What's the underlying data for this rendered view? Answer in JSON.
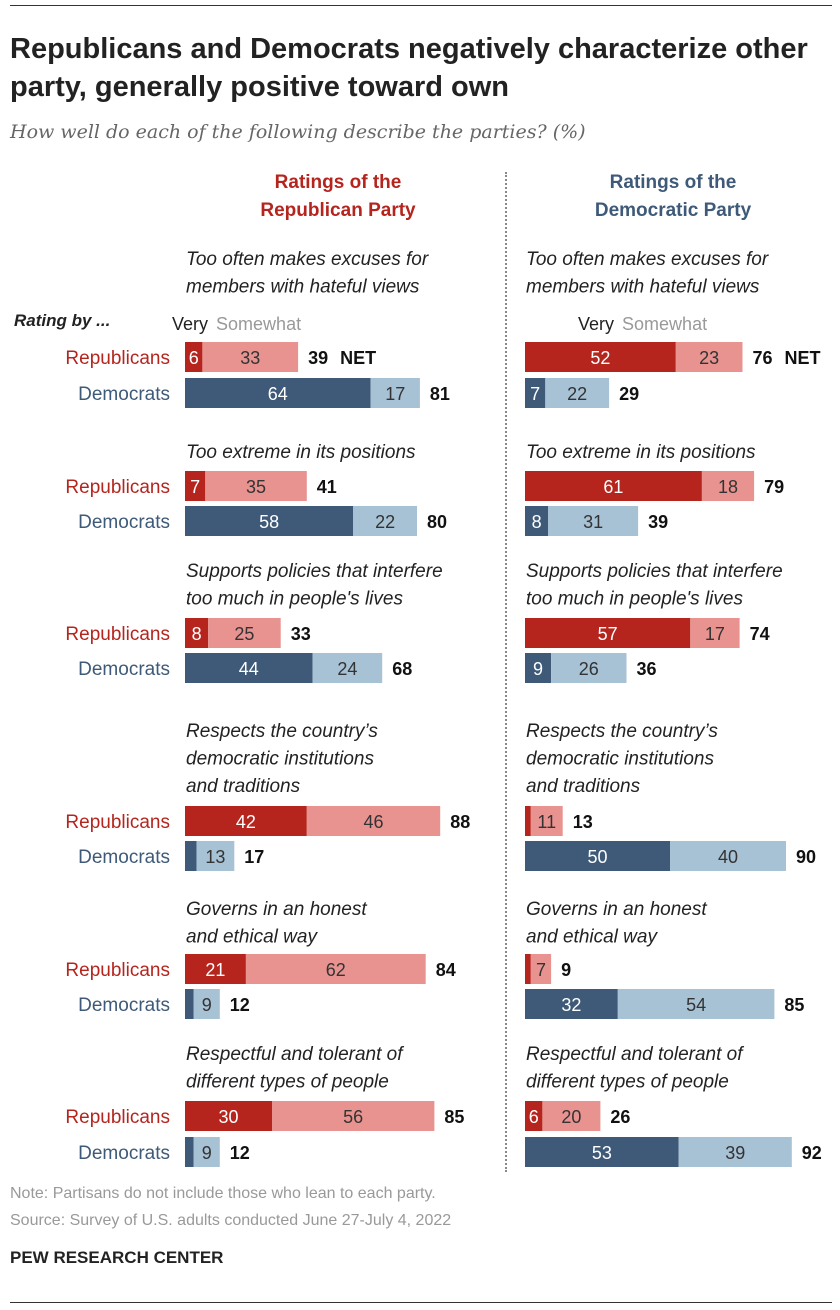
{
  "header": {
    "title": "Republicans and Democrats negatively characterize other party, generally positive toward own",
    "subtitle": "How well do each of the following describe the parties? (%)",
    "rating_by": "Rating by ..."
  },
  "legend": {
    "very": "Very",
    "somewhat": "Somewhat"
  },
  "footer": {
    "note": "Note: Partisans do not include those who lean to each party.",
    "source": "Source: Survey of U.S. adults conducted June 27-July 4, 2022",
    "brand": "PEW RESEARCH CENTER"
  },
  "colors": {
    "rep_very": "#b5251e",
    "rep_somewhat": "#e89390",
    "dem_very": "#3e5a78",
    "dem_somewhat": "#a7c1d5",
    "rep_text": "#b5251e",
    "dem_text": "#3e5a78"
  },
  "chart_data": {
    "type": "bar",
    "stacked": true,
    "orientation": "horizontal",
    "net_suffix": "NET",
    "row_labels": {
      "rep": "Republicans",
      "dem": "Democrats"
    },
    "panels": [
      {
        "title_lines": [
          "Ratings of the",
          "Republican Party"
        ],
        "items": [
          {
            "lines": [
              "Too often makes excuses for",
              "members with hateful views"
            ],
            "rows": [
              {
                "group": "rep",
                "very": 6,
                "somewhat": 33,
                "net": 39
              },
              {
                "group": "dem",
                "very": 64,
                "somewhat": 17,
                "net": 81
              }
            ]
          },
          {
            "lines": [
              "Too extreme in its positions"
            ],
            "rows": [
              {
                "group": "rep",
                "very": 7,
                "somewhat": 35,
                "net": 41
              },
              {
                "group": "dem",
                "very": 58,
                "somewhat": 22,
                "net": 80
              }
            ]
          },
          {
            "lines": [
              "Supports policies that interfere",
              "too much in people's lives"
            ],
            "rows": [
              {
                "group": "rep",
                "very": 8,
                "somewhat": 25,
                "net": 33
              },
              {
                "group": "dem",
                "very": 44,
                "somewhat": 24,
                "net": 68
              }
            ]
          },
          {
            "lines": [
              "Respects the country’s",
              "democratic institutions",
              "and traditions"
            ],
            "rows": [
              {
                "group": "rep",
                "very": 42,
                "somewhat": 46,
                "net": 88
              },
              {
                "group": "dem",
                "very": 4,
                "somewhat": 13,
                "net": 17
              }
            ]
          },
          {
            "lines": [
              "Governs in an honest",
              "and ethical way"
            ],
            "rows": [
              {
                "group": "rep",
                "very": 21,
                "somewhat": 62,
                "net": 84
              },
              {
                "group": "dem",
                "very": 3,
                "somewhat": 9,
                "net": 12
              }
            ]
          },
          {
            "lines": [
              "Respectful and tolerant of",
              "different types of people"
            ],
            "rows": [
              {
                "group": "rep",
                "very": 30,
                "somewhat": 56,
                "net": 85
              },
              {
                "group": "dem",
                "very": 3,
                "somewhat": 9,
                "net": 12
              }
            ]
          }
        ]
      },
      {
        "title_lines": [
          "Ratings of the",
          "Democratic Party"
        ],
        "items": [
          {
            "lines": [
              "Too often makes excuses for",
              "members with hateful views"
            ],
            "rows": [
              {
                "group": "rep",
                "very": 52,
                "somewhat": 23,
                "net": 76
              },
              {
                "group": "dem",
                "very": 7,
                "somewhat": 22,
                "net": 29
              }
            ]
          },
          {
            "lines": [
              "Too extreme in its positions"
            ],
            "rows": [
              {
                "group": "rep",
                "very": 61,
                "somewhat": 18,
                "net": 79
              },
              {
                "group": "dem",
                "very": 8,
                "somewhat": 31,
                "net": 39
              }
            ]
          },
          {
            "lines": [
              "Supports policies that interfere",
              "too much in people's lives"
            ],
            "rows": [
              {
                "group": "rep",
                "very": 57,
                "somewhat": 17,
                "net": 74
              },
              {
                "group": "dem",
                "very": 9,
                "somewhat": 26,
                "net": 36
              }
            ]
          },
          {
            "lines": [
              "Respects the country’s",
              "democratic institutions",
              "and traditions"
            ],
            "rows": [
              {
                "group": "rep",
                "very": 2,
                "somewhat": 11,
                "net": 13
              },
              {
                "group": "dem",
                "very": 50,
                "somewhat": 40,
                "net": 90
              }
            ]
          },
          {
            "lines": [
              "Governs in an honest",
              "and ethical way"
            ],
            "rows": [
              {
                "group": "rep",
                "very": 2,
                "somewhat": 7,
                "net": 9
              },
              {
                "group": "dem",
                "very": 32,
                "somewhat": 54,
                "net": 85
              }
            ]
          },
          {
            "lines": [
              "Respectful and tolerant of",
              "different types of people"
            ],
            "rows": [
              {
                "group": "rep",
                "very": 6,
                "somewhat": 20,
                "net": 26
              },
              {
                "group": "dem",
                "very": 53,
                "somewhat": 39,
                "net": 92
              }
            ]
          }
        ]
      }
    ]
  }
}
